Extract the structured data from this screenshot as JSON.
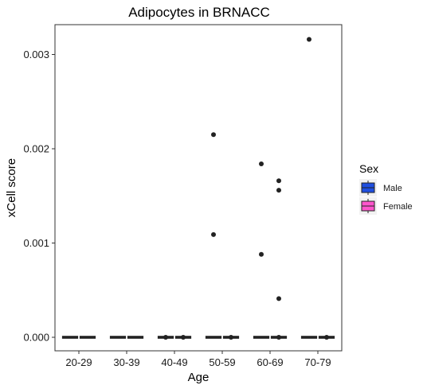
{
  "chart_data": {
    "type": "box",
    "title": "Adipocytes in BRNACC",
    "xlabel": "Age",
    "ylabel": "xCell score",
    "categories": [
      "20-29",
      "30-39",
      "40-49",
      "50-59",
      "60-69",
      "70-79"
    ],
    "y_ticks": [
      "0.000",
      "0.001",
      "0.002",
      "0.003"
    ],
    "ylim": [
      -0.0001,
      0.0033
    ],
    "legend": {
      "title": "Sex",
      "position": "right",
      "entries": [
        {
          "label": "Male",
          "color": "#1f4fe0"
        },
        {
          "label": "Female",
          "color": "#ff55cc"
        }
      ]
    },
    "series": [
      {
        "name": "Male",
        "color": "#1f4fe0",
        "median": [
          0,
          0,
          0,
          0,
          0,
          0
        ],
        "outliers": [
          [],
          [],
          [
            0
          ],
          [
            0.00109,
            0.00215
          ],
          [
            0.00088,
            0.00184
          ],
          [
            0.00316
          ]
        ]
      },
      {
        "name": "Female",
        "color": "#ff55cc",
        "median": [
          0,
          0,
          0,
          0,
          0,
          0
        ],
        "outliers": [
          [],
          [],
          [
            0
          ],
          [
            0
          ],
          [
            0,
            0.00041,
            0.00156,
            0.00166
          ],
          [
            0
          ]
        ]
      }
    ]
  }
}
